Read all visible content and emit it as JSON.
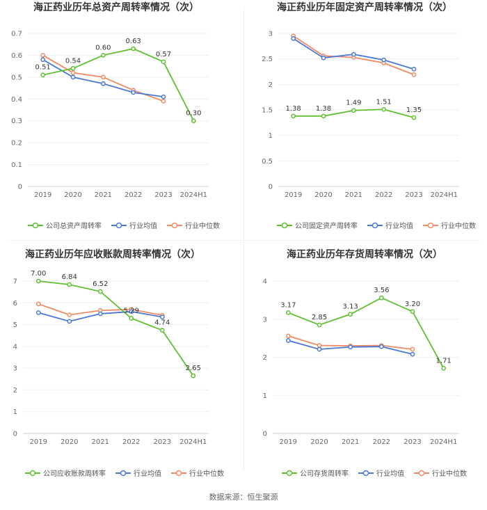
{
  "colors": {
    "company": "#5fbf2f",
    "industry_avg": "#4a78d6",
    "industry_median": "#ef8a62"
  },
  "footer": {
    "source": "数据来源：恒生聚源"
  },
  "chart_data": [
    {
      "type": "line",
      "title": "海正药业历年总资产周转率情况（次）",
      "categories": [
        "2019",
        "2020",
        "2021",
        "2022",
        "2023",
        "2024H1"
      ],
      "ylim": [
        0,
        0.7
      ],
      "yticks": [
        "0",
        "0.1",
        "0.2",
        "0.3",
        "0.4",
        "0.5",
        "0.6",
        "0.7"
      ],
      "series": [
        {
          "name": "公司总资产周转率",
          "values": [
            0.51,
            0.54,
            0.6,
            0.63,
            0.57,
            0.3
          ],
          "labels": [
            "0.51",
            "0.54",
            "0.60",
            "0.63",
            "0.57",
            "0.30"
          ]
        },
        {
          "name": "行业均值",
          "values": [
            0.58,
            0.5,
            0.47,
            0.43,
            0.41,
            null
          ]
        },
        {
          "name": "行业中位数",
          "values": [
            0.6,
            0.52,
            0.5,
            0.44,
            0.39,
            null
          ]
        }
      ]
    },
    {
      "type": "line",
      "title": "海正药业历年固定资产周转率情况（次）",
      "categories": [
        "2019",
        "2020",
        "2021",
        "2022",
        "2023",
        "2024H1"
      ],
      "ylim": [
        0,
        3
      ],
      "yticks": [
        "0",
        "0.5",
        "1",
        "1.5",
        "2",
        "2.5",
        "3"
      ],
      "series": [
        {
          "name": "公司固定资产周转率",
          "values": [
            1.38,
            1.38,
            1.49,
            1.51,
            1.35,
            null
          ],
          "labels": [
            "1.38",
            "1.38",
            "1.49",
            "1.51",
            "1.35",
            ""
          ]
        },
        {
          "name": "行业均值",
          "values": [
            2.9,
            2.52,
            2.59,
            2.48,
            2.3,
            null
          ]
        },
        {
          "name": "行业中位数",
          "values": [
            2.95,
            2.56,
            2.53,
            2.42,
            2.19,
            null
          ]
        }
      ]
    },
    {
      "type": "line",
      "title": "海正药业历年应收账款周转率情况（次）",
      "categories": [
        "2019",
        "2020",
        "2021",
        "2022",
        "2023",
        "2024H1"
      ],
      "ylim": [
        0,
        7
      ],
      "yticks": [
        "0",
        "1",
        "2",
        "3",
        "4",
        "5",
        "6",
        "7"
      ],
      "series": [
        {
          "name": "公司应收账款周转率",
          "values": [
            7.0,
            6.84,
            6.52,
            5.29,
            4.74,
            2.65
          ],
          "labels": [
            "7.00",
            "6.84",
            "6.52",
            "5.29",
            "4.74",
            "2.65"
          ]
        },
        {
          "name": "行业均值",
          "values": [
            5.55,
            5.15,
            5.5,
            5.6,
            5.35,
            null
          ]
        },
        {
          "name": "行业中位数",
          "values": [
            5.95,
            5.45,
            5.65,
            5.7,
            5.43,
            null
          ]
        }
      ]
    },
    {
      "type": "line",
      "title": "海正药业历年存货周转率情况（次）",
      "categories": [
        "2019",
        "2020",
        "2021",
        "2022",
        "2023",
        "2024H1"
      ],
      "ylim": [
        0,
        4
      ],
      "yticks": [
        "0",
        "1",
        "2",
        "3",
        "4"
      ],
      "series": [
        {
          "name": "公司存货周转率",
          "values": [
            3.17,
            2.85,
            3.13,
            3.56,
            3.2,
            1.71
          ],
          "labels": [
            "3.17",
            "2.85",
            "3.13",
            "3.56",
            "3.20",
            "1.71"
          ]
        },
        {
          "name": "行业均值",
          "values": [
            2.44,
            2.21,
            2.27,
            2.28,
            2.08,
            null
          ]
        },
        {
          "name": "行业中位数",
          "values": [
            2.56,
            2.31,
            2.3,
            2.31,
            2.21,
            null
          ]
        }
      ]
    }
  ]
}
